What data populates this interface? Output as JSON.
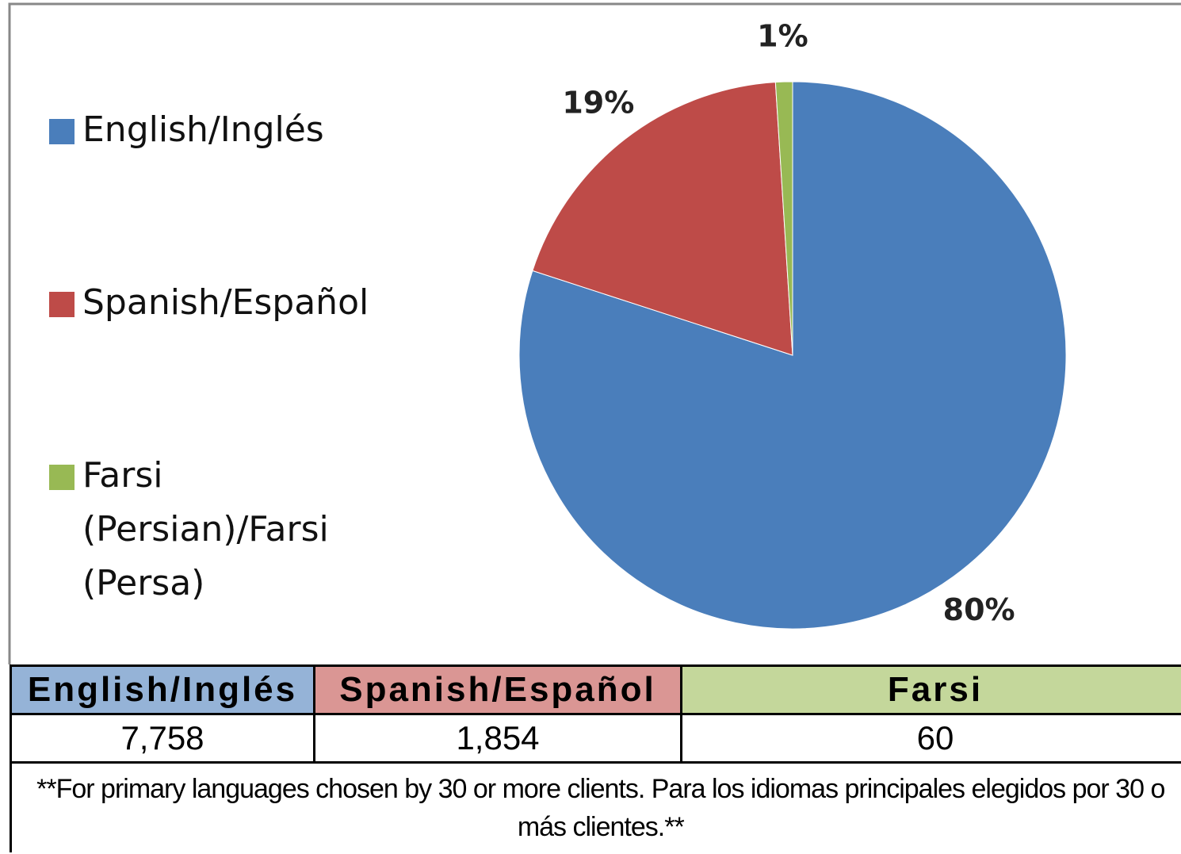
{
  "chart_data": {
    "type": "pie",
    "categories": [
      "English/Inglés",
      "Spanish/Español",
      "Farsi (Persian)/Farsi (Persa)"
    ],
    "values": [
      80,
      19,
      1
    ],
    "value_labels": [
      "80%",
      "19%",
      "1%"
    ],
    "colors": [
      "#4a7ebb",
      "#be4b48",
      "#98b954"
    ],
    "legend": "left"
  },
  "table": {
    "headers": [
      "English/Inglés",
      "Spanish/Español",
      "Farsi"
    ],
    "header_colors": [
      "#95b3d7",
      "#da9694",
      "#c4d79b"
    ],
    "rows": [
      [
        "7,758",
        "1,854",
        "60"
      ]
    ],
    "footnote": "**For primary languages chosen by 30 or more clients. Para los idiomas principales elegidos por 30 o más clientes.**"
  }
}
